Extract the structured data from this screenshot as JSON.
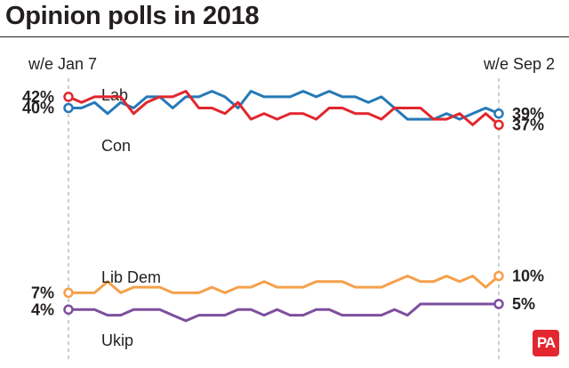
{
  "chart_data": {
    "type": "line",
    "title": "Opinion polls in 2018",
    "period_start": "w/e Jan 7",
    "period_end": "w/e Sep 2",
    "ylim": [
      0,
      50
    ],
    "grid": false,
    "series": [
      {
        "name": "Lab",
        "color": "#2579b7",
        "start_label": "40%",
        "end_label": "39%",
        "values": [
          40,
          40,
          41,
          39,
          41,
          40,
          42,
          42,
          40,
          42,
          42,
          43,
          42,
          40,
          43,
          42,
          42,
          42,
          43,
          42,
          43,
          42,
          42,
          41,
          42,
          40,
          38,
          38,
          38,
          39,
          38,
          39,
          40,
          39
        ]
      },
      {
        "name": "Con",
        "color": "#e1262d",
        "start_label": "42%",
        "end_label": "37%",
        "values": [
          42,
          41,
          42,
          42,
          42,
          39,
          41,
          42,
          42,
          43,
          40,
          40,
          39,
          41,
          38,
          39,
          38,
          39,
          39,
          38,
          40,
          40,
          39,
          39,
          38,
          40,
          40,
          40,
          38,
          38,
          39,
          37,
          39,
          37
        ]
      },
      {
        "name": "Lib Dem",
        "color": "#f5a04a",
        "start_label": "7%",
        "end_label": "10%",
        "values": [
          7,
          7,
          7,
          9,
          7,
          8,
          8,
          8,
          7,
          7,
          7,
          8,
          7,
          8,
          8,
          9,
          8,
          8,
          8,
          9,
          9,
          9,
          8,
          8,
          8,
          9,
          10,
          9,
          9,
          10,
          9,
          10,
          8,
          10
        ]
      },
      {
        "name": "Ukip",
        "color": "#7d4f9e",
        "start_label": "4%",
        "end_label": "5%",
        "values": [
          4,
          4,
          4,
          3,
          3,
          4,
          4,
          4,
          3,
          2,
          3,
          3,
          3,
          4,
          4,
          3,
          4,
          3,
          3,
          4,
          4,
          3,
          3,
          3,
          3,
          4,
          3,
          5,
          5,
          5,
          5,
          5,
          5,
          5
        ]
      }
    ]
  },
  "branding": {
    "logo_text": "PA",
    "logo_color": "#e3262f"
  }
}
